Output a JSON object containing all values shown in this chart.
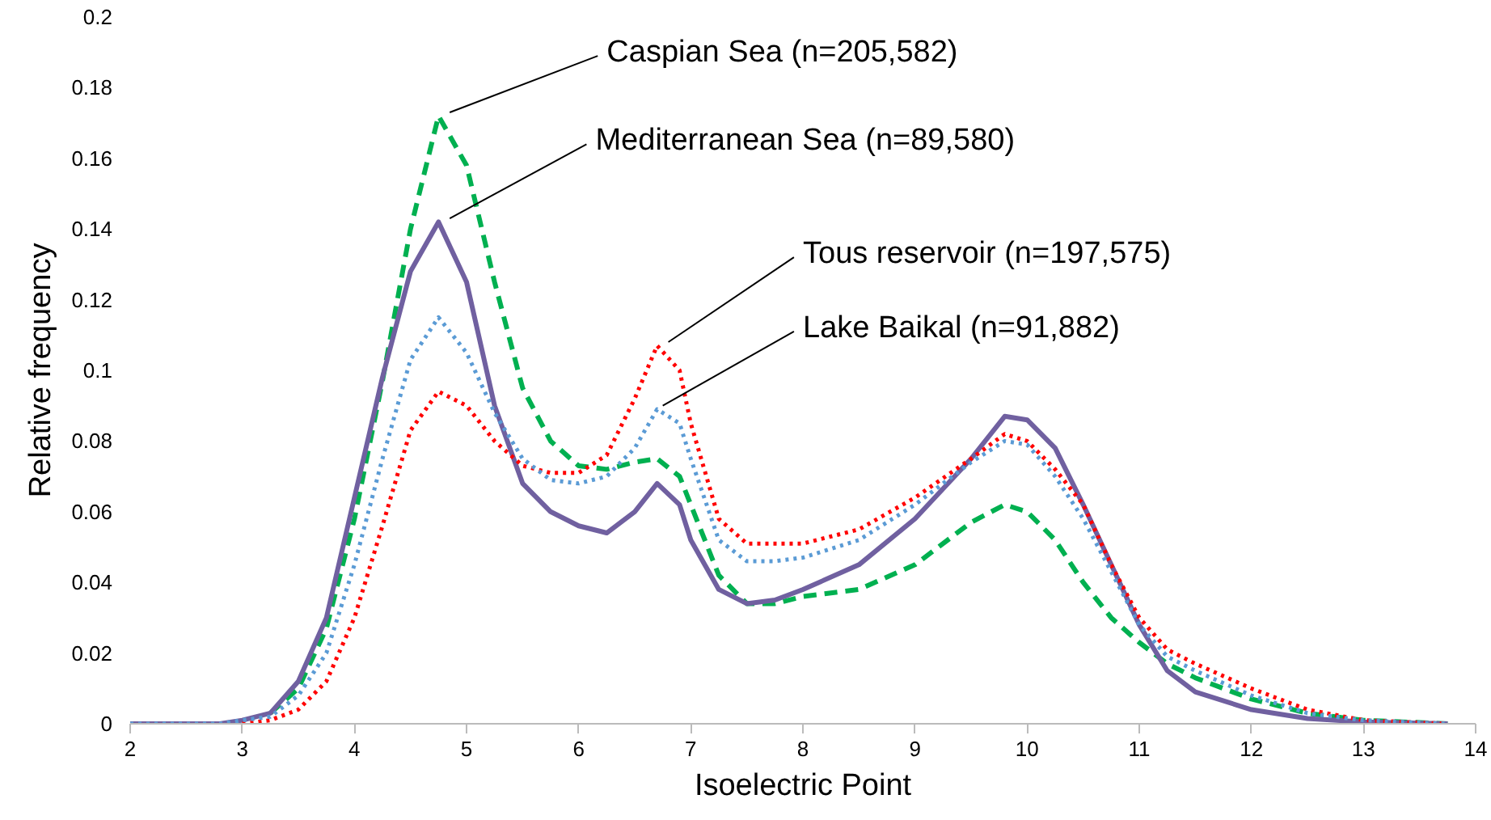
{
  "chart_data": {
    "type": "line",
    "xlabel": "Isoelectric Point",
    "ylabel": "Relative frequency",
    "xlim": [
      2,
      14
    ],
    "xticks": [
      2,
      3,
      4,
      5,
      6,
      7,
      8,
      9,
      10,
      11,
      12,
      13,
      14
    ],
    "ylim": [
      0,
      0.2
    ],
    "yticks": [
      0,
      0.02,
      0.04,
      0.06,
      0.08,
      0.1,
      0.12,
      0.14,
      0.16,
      0.18,
      0.2
    ],
    "x": [
      2,
      2.5,
      2.8,
      3,
      3.25,
      3.5,
      3.75,
      4,
      4.25,
      4.5,
      4.75,
      5,
      5.25,
      5.5,
      5.75,
      6,
      6.25,
      6.5,
      6.7,
      6.9,
      7,
      7.25,
      7.5,
      7.75,
      8,
      8.5,
      9,
      9.5,
      9.8,
      10,
      10.25,
      10.5,
      10.75,
      11,
      11.25,
      11.5,
      12,
      12.5,
      13,
      13.75
    ],
    "series": [
      {
        "color": "#00b050",
        "line_style": "dashed",
        "values": [
          null,
          null,
          null,
          null,
          0.003,
          0.01,
          0.027,
          0.058,
          0.097,
          0.14,
          0.172,
          0.158,
          0.125,
          0.095,
          0.08,
          0.073,
          0.072,
          0.074,
          0.075,
          0.07,
          0.062,
          0.042,
          0.034,
          0.034,
          0.036,
          0.038,
          0.045,
          0.057,
          0.062,
          0.06,
          0.052,
          0.04,
          0.03,
          0.023,
          0.017,
          0.013,
          0.007,
          0.003,
          0.001,
          0
        ]
      },
      {
        "color": "#7060a0",
        "line_style": "solid",
        "values": [
          0,
          0,
          0,
          0.001,
          0.003,
          0.012,
          0.03,
          0.064,
          0.098,
          0.128,
          0.142,
          0.125,
          0.09,
          0.068,
          0.06,
          0.056,
          0.054,
          0.06,
          0.068,
          0.062,
          0.052,
          0.038,
          0.034,
          0.035,
          0.038,
          0.045,
          0.058,
          0.075,
          0.087,
          0.086,
          0.078,
          0.062,
          0.045,
          0.028,
          0.015,
          0.009,
          0.004,
          0.0015,
          0.0005,
          0
        ]
      },
      {
        "color": "#ff0000",
        "line_style": "dotted",
        "values": [
          null,
          null,
          null,
          0,
          0.001,
          0.004,
          0.012,
          0.03,
          0.056,
          0.083,
          0.094,
          0.09,
          0.08,
          0.073,
          0.071,
          0.071,
          0.076,
          0.092,
          0.107,
          0.1,
          0.085,
          0.058,
          0.051,
          0.051,
          0.051,
          0.055,
          0.064,
          0.075,
          0.082,
          0.08,
          0.072,
          0.062,
          0.045,
          0.03,
          0.021,
          0.017,
          0.01,
          0.004,
          0.001,
          0
        ]
      },
      {
        "color": "#5b9bd5",
        "line_style": "dotted",
        "values": [
          0,
          0,
          0,
          0.001,
          0.002,
          0.008,
          0.02,
          0.045,
          0.075,
          0.103,
          0.115,
          0.105,
          0.088,
          0.075,
          0.069,
          0.068,
          0.07,
          0.078,
          0.089,
          0.085,
          0.075,
          0.052,
          0.046,
          0.046,
          0.047,
          0.052,
          0.062,
          0.074,
          0.08,
          0.079,
          0.07,
          0.058,
          0.043,
          0.028,
          0.019,
          0.015,
          0.008,
          0.003,
          0.001,
          0
        ]
      }
    ],
    "annotations": [
      {
        "text": "Caspian Sea (n=205,582)",
        "x": 4.8,
        "y": 0.172
      },
      {
        "text": "Mediterranean Sea (n=89,580)",
        "x": 4.8,
        "y": 0.142
      },
      {
        "text": "Tous reservoir (n=197,575)",
        "x": 6.75,
        "y": 0.107
      },
      {
        "text": "Lake Baikal (n=91,882)",
        "x": 6.7,
        "y": 0.089
      }
    ]
  }
}
